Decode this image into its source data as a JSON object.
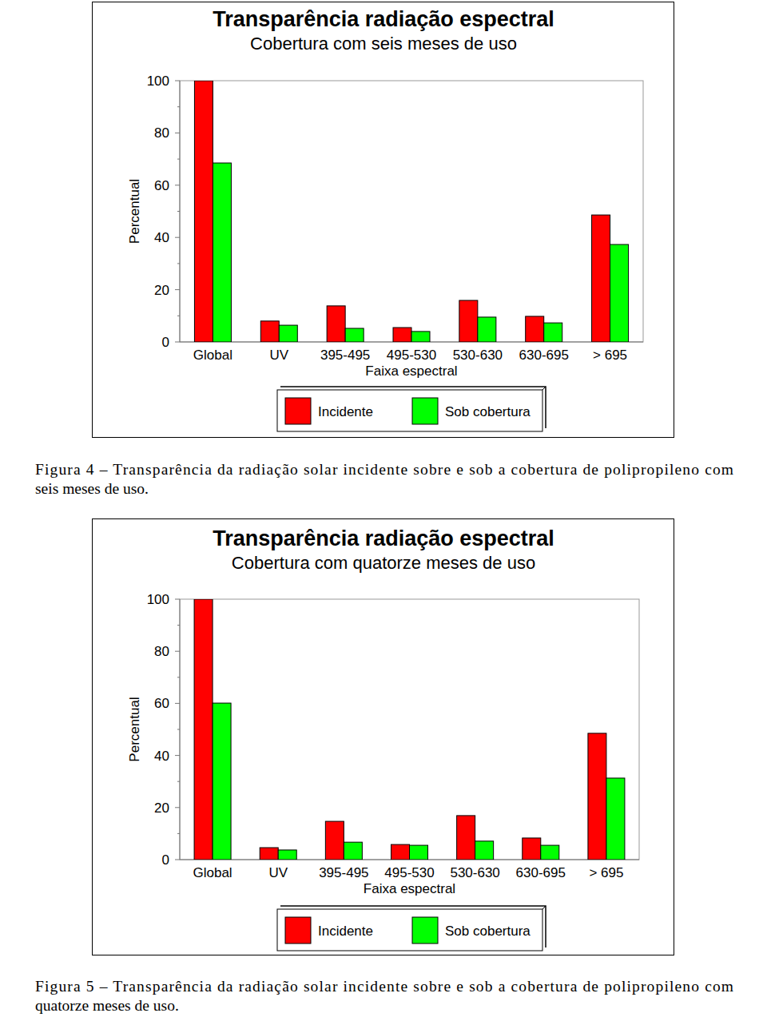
{
  "chart_data": [
    {
      "type": "bar",
      "title": "Transparência radiação espectral",
      "subtitle": "Cobertura com seis meses de uso",
      "y_label": "Percentual",
      "x_label": "Faixa espectral",
      "categories": [
        "Global",
        "UV",
        "395-495",
        "495-530",
        "530-630",
        "630-695",
        "> 695"
      ],
      "series": [
        {
          "name": "Incidente",
          "color": "#ff0000",
          "values": [
            100,
            8,
            13.8,
            5.5,
            15.9,
            9.8,
            48.6
          ]
        },
        {
          "name": "Sob cobertura",
          "color": "#00ff00",
          "values": [
            68.5,
            6.4,
            5.2,
            4,
            9.5,
            7.3,
            37.3
          ]
        }
      ],
      "ylim": [
        0,
        100
      ],
      "yticks": [
        0,
        20,
        40,
        60,
        80,
        100
      ],
      "grid": false,
      "legend": "bottom",
      "caption": [
        "Figura 4 – Transparência da radiação solar incidente sobre e sob a cobertura de polipropileno com",
        "seis meses de uso."
      ]
    },
    {
      "type": "bar",
      "title": "Transparência radiação espectral",
      "subtitle": "Cobertura com quatorze meses de uso",
      "y_label": "Percentual",
      "x_label": "Faixa espectral",
      "categories": [
        "Global",
        "UV",
        "395-495",
        "495-530",
        "530-630",
        "630-695",
        "> 695"
      ],
      "series": [
        {
          "name": "Incidente",
          "color": "#ff0000",
          "values": [
            100,
            4.6,
            14.7,
            5.8,
            16.9,
            8.3,
            48.5
          ]
        },
        {
          "name": "Sob cobertura",
          "color": "#00ff00",
          "values": [
            60.1,
            3.7,
            6.7,
            5.5,
            7.1,
            5.5,
            31.3
          ]
        }
      ],
      "ylim": [
        0,
        100
      ],
      "yticks": [
        0,
        20,
        40,
        60,
        80,
        100
      ],
      "grid": false,
      "legend": "bottom",
      "caption": [
        "Figura 5 – Transparência da radiação solar incidente sobre e sob a cobertura de polipropileno com",
        "quatorze meses de uso."
      ]
    }
  ]
}
